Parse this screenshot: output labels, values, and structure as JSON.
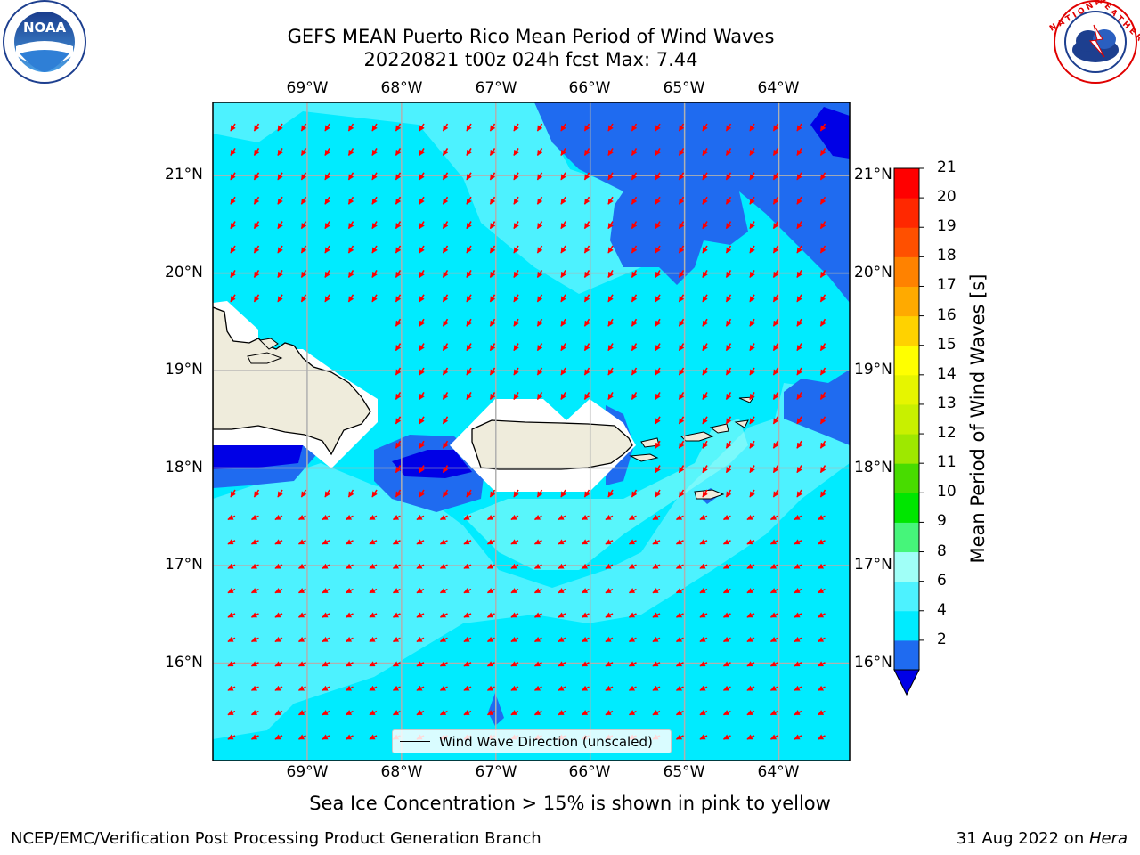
{
  "header": {
    "title_line1": "GEFS MEAN Puerto Rico Mean Period of Wind Waves",
    "title_line2": "20220821 t00z 024h fcst   Max: 7.44"
  },
  "logos": {
    "noaa": {
      "text": "NOAA",
      "ring_text": "NATIONAL OCEANIC AND ATMOSPHERIC ADMINISTRATION · U.S. DEPARTMENT OF COMMERCE"
    },
    "nws": {
      "ring_text": "NATIONAL WEATHER SERVICE"
    }
  },
  "map": {
    "lon_labels_top": [
      "69°W",
      "68°W",
      "67°W",
      "66°W",
      "65°W",
      "64°W"
    ],
    "lon_labels_bottom": [
      "69°W",
      "68°W",
      "67°W",
      "66°W",
      "65°W",
      "64°W"
    ],
    "lat_labels_left": [
      "21°N",
      "20°N",
      "19°N",
      "18°N",
      "17°N",
      "16°N"
    ],
    "lat_labels_right": [
      "21°N",
      "20°N",
      "19°N",
      "18°N",
      "17°N",
      "16°N"
    ],
    "extent": {
      "lon_min": -70.0,
      "lon_max": -63.25,
      "lat_min": 15.0,
      "lat_max": 21.75
    },
    "legend_label": "Wind Wave Direction (unscaled)",
    "arrow_color": "#ff0000",
    "land_color": "#efecdc"
  },
  "colorbar": {
    "label": "Mean Period of Wind Waves [s]",
    "ticks": [
      "21",
      "20",
      "19",
      "18",
      "17",
      "16",
      "15",
      "14",
      "13",
      "12",
      "11",
      "10",
      "9",
      "8",
      "6",
      "4",
      "2"
    ],
    "colors": [
      "#0000e6",
      "#1f6bf0",
      "#00ebff",
      "#4df2ff",
      "#a0fff7",
      "#46f57a",
      "#00e600",
      "#48dc00",
      "#9ee800",
      "#c8f000",
      "#e6f500",
      "#ffff00",
      "#ffd200",
      "#ffaa00",
      "#ff8200",
      "#ff5000",
      "#ff2800",
      "#ff0000"
    ]
  },
  "subtitle": "Sea Ice Concentration > 15% is shown in pink to yellow",
  "footer": {
    "left": "NCEP/EMC/Verification Post Processing Product Generation Branch",
    "right_prefix": "31 Aug 2022 on ",
    "right_host": "Hera"
  }
}
